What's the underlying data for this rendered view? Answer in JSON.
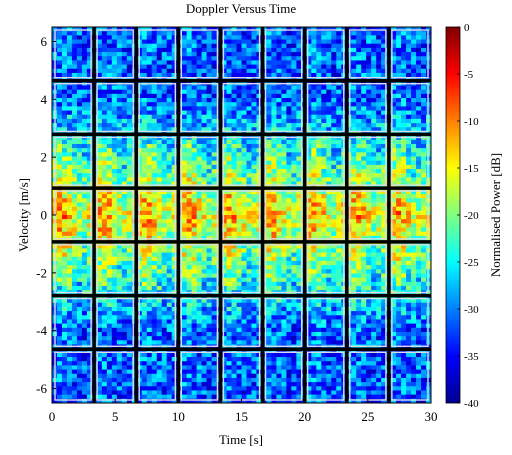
{
  "chart_data": {
    "type": "heatmap",
    "title": "Doppler Versus Time",
    "xlabel": "Time [s]",
    "ylabel": "Velocity [m/s]",
    "colorbar_label": "Normalised Power [dB]",
    "xlim": [
      0,
      30
    ],
    "ylim": [
      -6.5,
      6.5
    ],
    "clim": [
      -40,
      0
    ],
    "xticks": [
      0,
      5,
      10,
      15,
      20,
      25,
      30
    ],
    "yticks": [
      -6,
      -4,
      -2,
      0,
      2,
      4,
      6
    ],
    "cticks": [
      0,
      -5,
      -10,
      -15,
      -20,
      -25,
      -30,
      -35,
      -40
    ],
    "grid": {
      "columns": 9,
      "rows": 7
    },
    "velocity_band_power_db": [
      {
        "velocity": 6,
        "power": -31
      },
      {
        "velocity": 4,
        "power": -31
      },
      {
        "velocity": 2,
        "power": -23
      },
      {
        "velocity": 0,
        "power": -14
      },
      {
        "velocity": -2,
        "power": -22
      },
      {
        "velocity": -4,
        "power": -31
      },
      {
        "velocity": -6,
        "power": -31
      }
    ],
    "colormap": "jet"
  }
}
